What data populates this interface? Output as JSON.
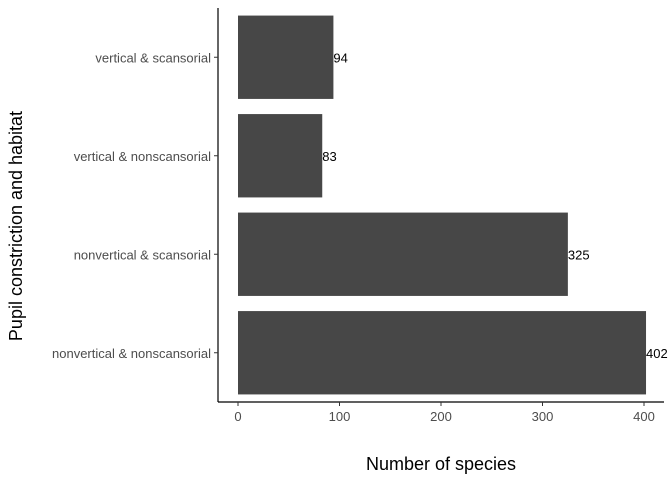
{
  "chart_data": {
    "type": "bar",
    "orientation": "horizontal",
    "title": "",
    "xlabel": "Number of species",
    "ylabel": "Pupil constriction and habitat",
    "categories": [
      "nonvertical & nonscansorial",
      "nonvertical & scansorial",
      "vertical & nonscansorial",
      "vertical & scansorial"
    ],
    "values": [
      402,
      325,
      83,
      94
    ],
    "value_labels": [
      "402",
      "325",
      "83",
      "94"
    ],
    "xlim": [
      0,
      420
    ],
    "xticks": [
      0,
      100,
      200,
      300,
      400
    ],
    "xtick_labels": [
      "0",
      "100",
      "200",
      "300",
      "400"
    ],
    "grid": false,
    "bar_color": "#474747"
  }
}
